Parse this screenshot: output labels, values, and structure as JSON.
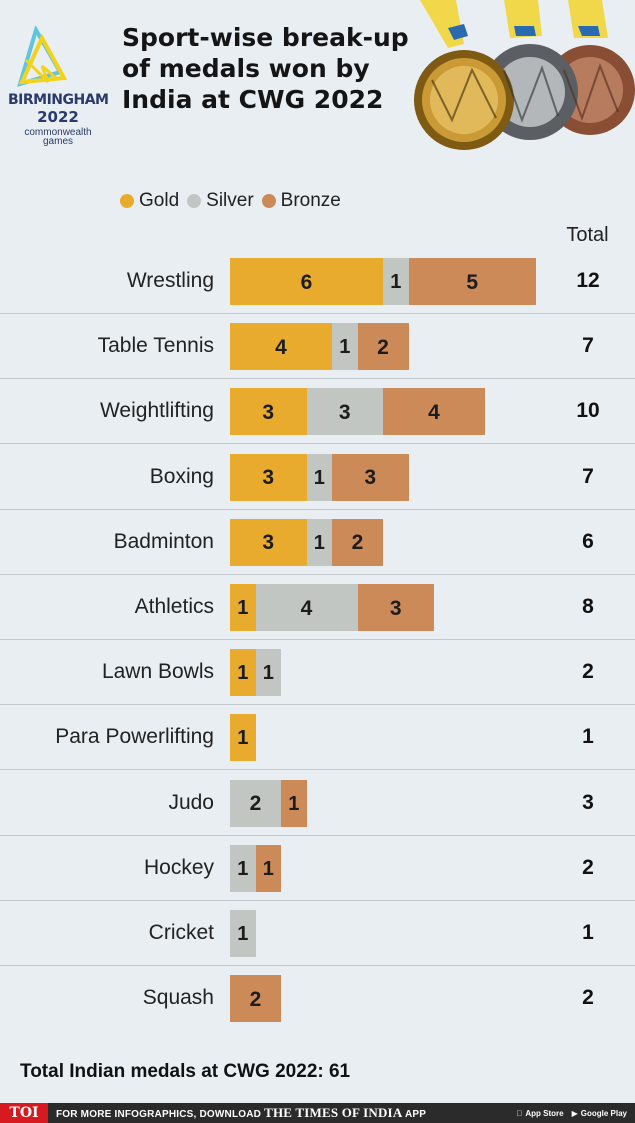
{
  "header": {
    "title": "Sport-wise break-up of medals won by India at CWG 2022",
    "logo": {
      "city": "BIRMINGHAM",
      "year": "2022",
      "tagline_1": "commonwealth",
      "tagline_2": "games"
    }
  },
  "legend": [
    {
      "label": "Gold",
      "color": "#e9ab2e"
    },
    {
      "label": "Silver",
      "color": "#c2c6c3"
    },
    {
      "label": "Bronze",
      "color": "#cc8a58"
    }
  ],
  "total_header": "Total",
  "chart_data": {
    "type": "bar",
    "orientation": "horizontal",
    "stacked": true,
    "title": "Sport-wise break-up of medals won by India at CWG 2022",
    "categories": [
      "Wrestling",
      "Table Tennis",
      "Weightlifting",
      "Boxing",
      "Badminton",
      "Athletics",
      "Lawn Bowls",
      "Para Powerlifting",
      "Judo",
      "Hockey",
      "Cricket",
      "Squash"
    ],
    "series": [
      {
        "name": "Gold",
        "color": "#e9ab2e",
        "values": [
          6,
          4,
          3,
          3,
          3,
          1,
          1,
          1,
          0,
          0,
          0,
          0
        ]
      },
      {
        "name": "Silver",
        "color": "#c2c6c3",
        "values": [
          1,
          1,
          3,
          1,
          1,
          4,
          1,
          0,
          2,
          1,
          1,
          0
        ]
      },
      {
        "name": "Bronze",
        "color": "#cc8a58",
        "values": [
          5,
          2,
          4,
          3,
          2,
          3,
          0,
          0,
          1,
          1,
          0,
          2
        ]
      }
    ],
    "totals": [
      "12",
      "7",
      "10",
      "7",
      "6",
      "8",
      "2",
      "1",
      "3",
      "2",
      "1",
      "2"
    ],
    "legend_position": "top",
    "grid": false
  },
  "footer": {
    "total_text": "Total Indian medals at CWG 2022: 61",
    "toi": "TOI",
    "promo_prefix": "FOR MORE INFOGRAPHICS, DOWNLOAD",
    "promo_brand": "THE TIMES OF INDIA",
    "promo_suffix": "APP",
    "app_store": "App Store",
    "google_play": "Google Play"
  }
}
